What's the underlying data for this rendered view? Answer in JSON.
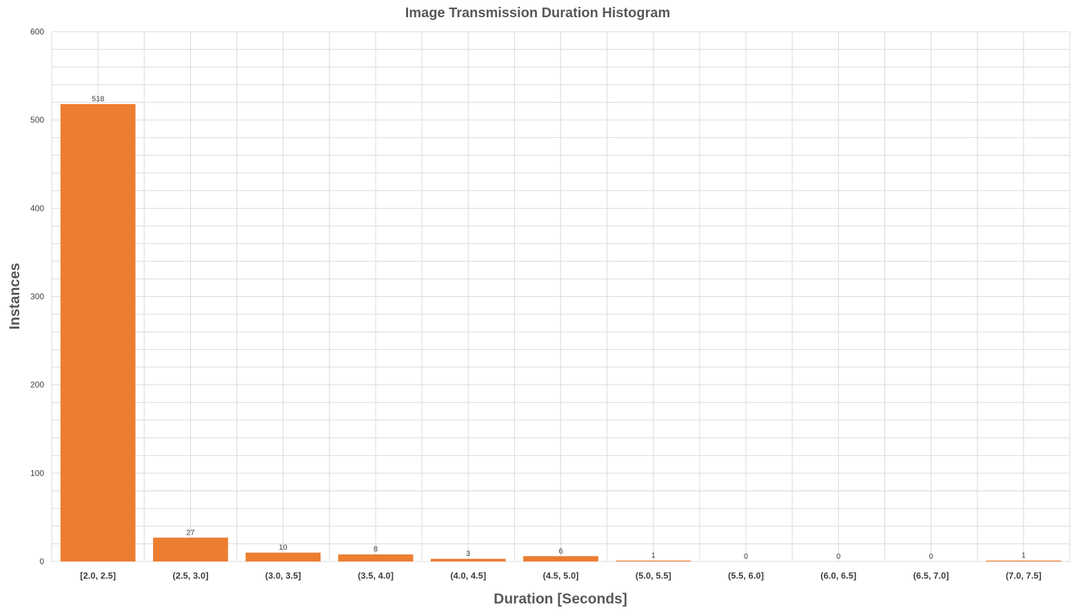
{
  "chart_data": {
    "type": "bar",
    "title": "Image Transmission Duration Histogram",
    "xlabel": "Duration [Seconds]",
    "ylabel": "Instances",
    "categories": [
      "[2.0, 2.5]",
      "(2.5, 3.0]",
      "(3.0, 3.5]",
      "(3.5, 4.0]",
      "(4.0, 4.5]",
      "(4.5, 5.0]",
      "(5.0, 5.5]",
      "(5.5, 6.0]",
      "(6.0, 6.5]",
      "(6.5, 7.0]",
      "(7.0, 7.5]"
    ],
    "values": [
      518,
      27,
      10,
      8,
      3,
      6,
      1,
      0,
      0,
      0,
      1
    ],
    "ylim": [
      0,
      600
    ],
    "yticks": [
      0,
      100,
      200,
      300,
      400,
      500,
      600
    ],
    "grid": true,
    "bar_color": "#ED7D31",
    "grid_color": "#D9D9D9"
  }
}
